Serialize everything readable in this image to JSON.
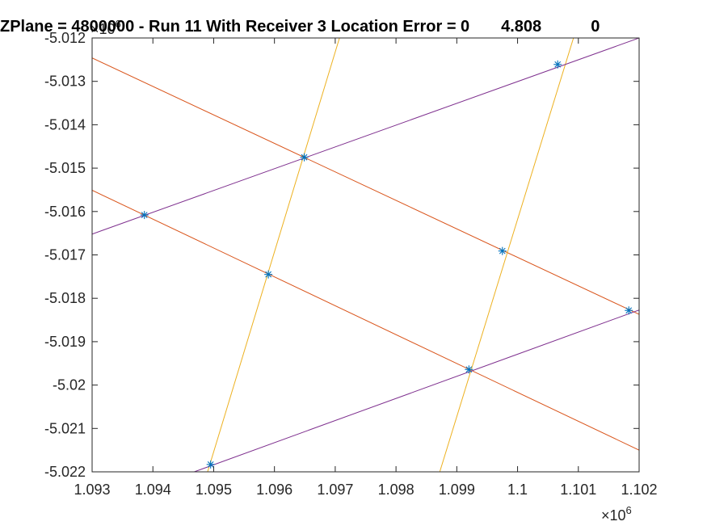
{
  "figure": {
    "title": "ZPlane = 4800000 - Run 11 With Receiver 3 Location Error = 0       4.808           0",
    "y_exponent_prefix": "×10",
    "y_exponent_power": "6",
    "x_exponent_prefix": "×10",
    "x_exponent_power": "6"
  },
  "chart_data": {
    "type": "line",
    "xlim": [
      1.093,
      1.102
    ],
    "ylim": [
      -5.022,
      -5.012
    ],
    "x_ticks": [
      1.093,
      1.094,
      1.095,
      1.096,
      1.097,
      1.098,
      1.099,
      1.1,
      1.101,
      1.102
    ],
    "x_tick_labels": [
      "1.093",
      "1.094",
      "1.095",
      "1.096",
      "1.097",
      "1.098",
      "1.099",
      "1.1",
      "1.101",
      "1.102"
    ],
    "y_ticks": [
      -5.012,
      -5.013,
      -5.014,
      -5.015,
      -5.016,
      -5.017,
      -5.018,
      -5.019,
      -5.02,
      -5.021,
      -5.022
    ],
    "y_tick_labels": [
      "-5.012",
      "-5.013",
      "-5.014",
      "-5.015",
      "-5.016",
      "-5.017",
      "-5.018",
      "-5.019",
      "-5.02",
      "-5.021",
      "-5.022"
    ],
    "x_scale_multiplier": "10^6",
    "y_scale_multiplier": "10^6",
    "grid": false,
    "colors": {
      "orange": "#D95319",
      "yellow": "#EDB120",
      "purple": "#7E2F8E",
      "marker": "#0072BD",
      "axis": "#262626"
    },
    "series": [
      {
        "color": "orange",
        "x": [
          1.093,
          1.102
        ],
        "y": [
          -5.01246,
          -5.01837
        ]
      },
      {
        "color": "orange",
        "x": [
          1.093,
          1.102
        ],
        "y": [
          -5.01551,
          -5.0215
        ]
      },
      {
        "color": "yellow",
        "x": [
          1.0949,
          1.09707
        ],
        "y": [
          -5.022,
          -5.012
        ]
      },
      {
        "color": "yellow",
        "x": [
          1.09872,
          1.10092
        ],
        "y": [
          -5.022,
          -5.012
        ]
      },
      {
        "color": "purple",
        "x": [
          1.093,
          1.102
        ],
        "y": [
          -5.01652,
          -5.012
        ]
      },
      {
        "color": "purple",
        "x": [
          1.09468,
          1.102
        ],
        "y": [
          -5.022,
          -5.01827
        ]
      },
      {
        "type": "scatter",
        "marker": "*",
        "color": "marker",
        "x": [
          1.09386,
          1.09649,
          1.10066,
          1.0959,
          1.09975,
          1.10183,
          1.0992,
          1.09495
        ],
        "y": [
          -5.01608,
          -5.01475,
          -5.01261,
          -5.01745,
          -5.01691,
          -5.01828,
          -5.01964,
          -5.02183
        ]
      }
    ]
  }
}
